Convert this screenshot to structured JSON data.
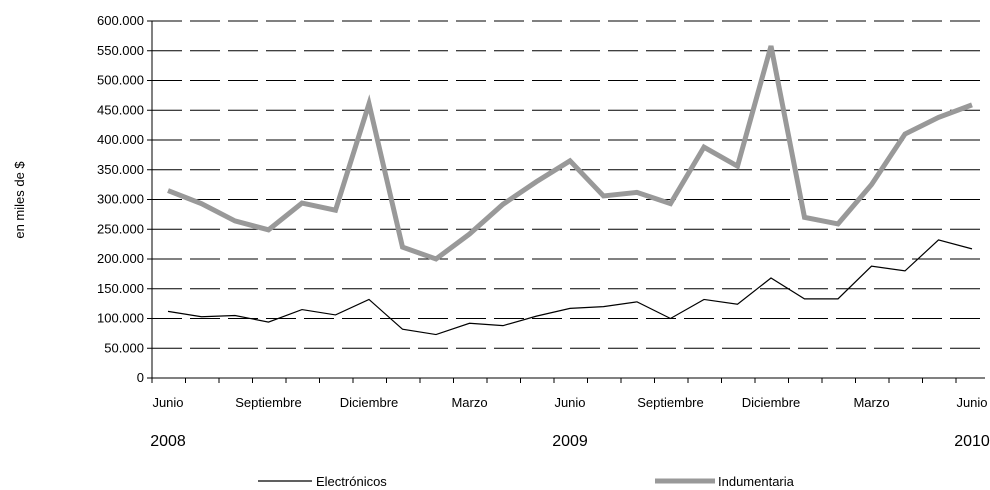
{
  "chart_data": {
    "type": "line",
    "title": "",
    "xlabel": "",
    "ylabel": "en miles de $",
    "ylim": [
      0,
      600000
    ],
    "y_ticks": [
      "0",
      "50.000",
      "100.000",
      "150.000",
      "200.000",
      "250.000",
      "300.000",
      "350.000",
      "400.000",
      "450.000",
      "500.000",
      "550.000",
      "600.000"
    ],
    "y_tick_values": [
      0,
      50000,
      100000,
      150000,
      200000,
      250000,
      300000,
      350000,
      400000,
      450000,
      500000,
      550000,
      600000
    ],
    "x": [
      "2008-06",
      "2008-07",
      "2008-08",
      "2008-09",
      "2008-10",
      "2008-11",
      "2008-12",
      "2009-01",
      "2009-02",
      "2009-03",
      "2009-04",
      "2009-05",
      "2009-06",
      "2009-07",
      "2009-08",
      "2009-09",
      "2009-10",
      "2009-11",
      "2009-12",
      "2010-01",
      "2010-02",
      "2010-03",
      "2010-04",
      "2010-05",
      "2010-06"
    ],
    "x_tick_labels": [
      {
        "index": 0,
        "label": "Junio"
      },
      {
        "index": 3,
        "label": "Septiembre"
      },
      {
        "index": 6,
        "label": "Diciembre"
      },
      {
        "index": 9,
        "label": "Marzo"
      },
      {
        "index": 12,
        "label": "Junio"
      },
      {
        "index": 15,
        "label": "Septiembre"
      },
      {
        "index": 18,
        "label": "Diciembre"
      },
      {
        "index": 21,
        "label": "Marzo"
      },
      {
        "index": 24,
        "label": "Junio"
      }
    ],
    "year_labels": [
      {
        "index": 0,
        "label": "2008"
      },
      {
        "index": 12,
        "label": "2009"
      },
      {
        "index": 24,
        "label": "2010"
      }
    ],
    "series": [
      {
        "name": "Electrónicos",
        "color": "#000000",
        "values": [
          112000,
          103000,
          105000,
          94000,
          115000,
          106000,
          132000,
          82000,
          73000,
          92000,
          88000,
          104000,
          117000,
          120000,
          128000,
          100000,
          132000,
          124000,
          168000,
          133000,
          133000,
          188000,
          180000,
          232000,
          217000
        ]
      },
      {
        "name": "Indumentaria",
        "color": "#999999",
        "values": [
          315000,
          293000,
          264000,
          249000,
          294000,
          282000,
          461000,
          220000,
          200000,
          242000,
          292000,
          330000,
          365000,
          306000,
          312000,
          293000,
          388000,
          356000,
          558000,
          270000,
          259000,
          325000,
          410000,
          438000,
          459000
        ]
      }
    ],
    "grid": true,
    "legend": "bottom"
  }
}
